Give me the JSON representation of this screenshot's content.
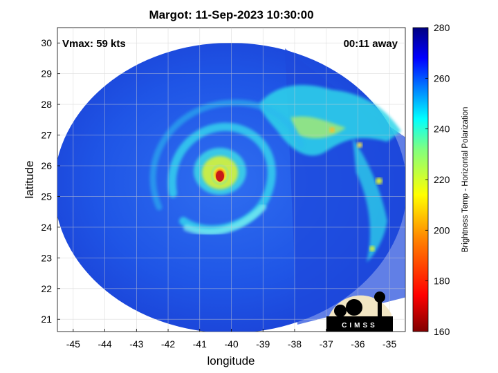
{
  "title": "Margot: 11-Sep-2023 10:30:00",
  "vmax_label": "Vmax: 59 kts",
  "away_label": "00:11 away",
  "xlabel": "longitude",
  "ylabel": "latitude",
  "colorbar_label": "Brightness Temp - Horizontal Polarization",
  "x_ticks": [
    "-45",
    "-44",
    "-43",
    "-42",
    "-41",
    "-40",
    "-39",
    "-38",
    "-37",
    "-36",
    "-35"
  ],
  "y_ticks": [
    "30",
    "29",
    "28",
    "27",
    "26",
    "25",
    "24",
    "23",
    "22",
    "21"
  ],
  "colorbar_ticks": [
    "280",
    "260",
    "240",
    "220",
    "200",
    "180",
    "160"
  ],
  "logo_text": "CIMSS",
  "map_data": {
    "lon_range": [
      -45.5,
      -34.5
    ],
    "lat_range": [
      20.6,
      30.5
    ],
    "colorbar_range": [
      160,
      280
    ],
    "grid": true,
    "storm_center": {
      "lon": -40.4,
      "lat": 25.6
    },
    "colors": {
      "cold_core": "#d81e1e",
      "eyewall": "#f5e630",
      "bands": "#36e2f2",
      "background_swath": "#1e50e8",
      "swath_edge": "#1a3cd8"
    }
  }
}
